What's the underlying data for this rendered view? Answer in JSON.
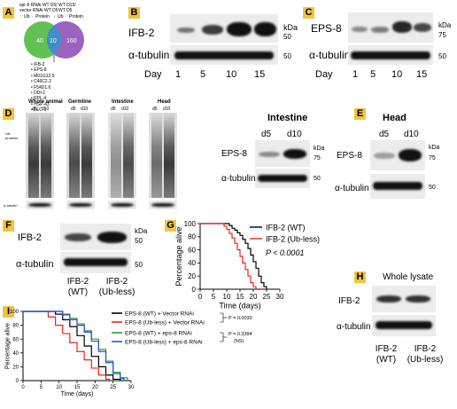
{
  "panels": {
    "A": {
      "label": "A",
      "header_left_1": "spr-6 RNAi WT D5/",
      "header_left_2": "vector RNAi WT D5",
      "header_right_1": "WT D15/",
      "header_right_2": "WT D5",
      "ub_up_left": "Ub",
      "protein_down_left": "Protein",
      "ub_down_right": "Ub",
      "protein_up_right": "Protein",
      "venn_left": "40",
      "venn_mid": "10",
      "venn_right": "160",
      "gene_list": [
        "IFB-2",
        "EPS-8",
        "M01G12.9",
        "C46C2.2",
        "F54D1.6",
        "DDI-1",
        "RPL-4",
        "HSP-43",
        "LEC-1",
        "USP-5"
      ]
    },
    "B": {
      "label": "B",
      "protein": "IFB-2",
      "loading": "α-tubulin",
      "days_label": "Day",
      "days": [
        "1",
        "5",
        "10",
        "15"
      ],
      "kda": "kDa",
      "mw_top": "50",
      "mw_bottom": "50"
    },
    "C": {
      "label": "C",
      "protein": "EPS-8",
      "loading": "α-tubulin",
      "days_label": "Day",
      "days": [
        "1",
        "5",
        "10",
        "15"
      ],
      "kda": "kDa",
      "mw_top": "75",
      "mw_bottom": "50"
    },
    "D": {
      "label": "D",
      "blots": [
        {
          "title": "Whole animal",
          "d1": "d5",
          "d2": "d10"
        },
        {
          "title": "Germline",
          "d1": "d5",
          "d2": "d10"
        },
        {
          "title": "Intestine",
          "d1": "d5",
          "d2": "d10"
        },
        {
          "title": "Head",
          "d1": "d5",
          "d2": "d10"
        }
      ],
      "ub_label": "Ub-proteins",
      "tub_label": "α-tubulin"
    },
    "intestine": {
      "title": "Intestine",
      "d1": "d5",
      "d2": "d10",
      "protein": "EPS-8",
      "loading": "α-tubulin",
      "kda": "kDa",
      "mw_top": "75",
      "mw_bottom": "50"
    },
    "E": {
      "label": "E",
      "title": "Head",
      "d1": "d5",
      "d2": "d10",
      "protein": "EPS-8",
      "loading": "α-tubulin",
      "kda": "kDa",
      "mw_top": "75",
      "mw_bottom": "50"
    },
    "F": {
      "label": "F",
      "protein": "IFB-2",
      "loading": "α-tubulin",
      "kda": "kDa",
      "mw_top": "50",
      "mw_bottom": "50",
      "lane1_a": "IFB-2",
      "lane1_b": "(WT)",
      "lane2_a": "IFB-2",
      "lane2_b": "(Ub-less)"
    },
    "G": {
      "label": "G",
      "pvalue": "P < 0.0001",
      "colors": {
        "wt": "#000000",
        "ubless": "#e8241d"
      }
    },
    "H": {
      "label": "H",
      "title": "Whole lysate",
      "protein": "IFB-2",
      "loading": "α-tubulin",
      "lane1_a": "IFB-2",
      "lane1_b": "(WT)",
      "lane2_a": "IFB-2",
      "lane2_b": "(Ub-less)"
    },
    "I": {
      "label": "I",
      "p1": "P = 0.0030",
      "p2": "P = 0.3394",
      "p2_note": "(NS)",
      "colors": {
        "wt_vec": "#000000",
        "ubless_vec": "#e8241d",
        "wt_eps": "#1aa128",
        "ubless_eps": "#2a4fd8"
      }
    }
  },
  "chart_data": [
    {
      "type": "line",
      "panel": "G",
      "xlabel": "Time (days)",
      "ylabel": "Percentage alive",
      "xlim": [
        0,
        30
      ],
      "ylim": [
        0,
        100
      ],
      "xticks": [
        0,
        5,
        10,
        15,
        20,
        25,
        30
      ],
      "yticks": [
        0,
        20,
        40,
        60,
        80,
        100
      ],
      "legend_position": "top-right",
      "series": [
        {
          "name": "IFB-2 (WT)",
          "x": [
            0,
            9,
            11,
            12,
            13,
            14,
            15,
            16,
            17,
            18,
            19,
            20,
            21,
            22,
            23,
            24,
            25
          ],
          "y": [
            100,
            100,
            97,
            93,
            90,
            86,
            82,
            76,
            70,
            62,
            52,
            42,
            32,
            20,
            10,
            4,
            0
          ]
        },
        {
          "name": "IFB-2 (Ub-less)",
          "x": [
            0,
            8,
            9,
            10,
            11,
            12,
            13,
            14,
            15,
            16,
            17,
            18,
            19,
            20,
            21
          ],
          "y": [
            100,
            100,
            96,
            91,
            85,
            78,
            70,
            60,
            50,
            40,
            30,
            20,
            10,
            4,
            0
          ]
        }
      ]
    },
    {
      "type": "line",
      "panel": "I",
      "xlabel": "Time (days)",
      "ylabel": "Percentage alive",
      "xlim": [
        0,
        30
      ],
      "ylim": [
        0,
        100
      ],
      "xticks": [
        0,
        5,
        10,
        15,
        20,
        25,
        30
      ],
      "yticks": [
        0,
        20,
        40,
        60,
        80,
        100
      ],
      "legend_position": "top-right",
      "series": [
        {
          "name": "EPS-8 (WT) + Vector RNAi",
          "x": [
            0,
            7,
            9,
            11,
            13,
            15,
            17,
            19,
            21,
            23,
            25,
            27
          ],
          "y": [
            100,
            100,
            96,
            88,
            78,
            65,
            50,
            35,
            20,
            8,
            2,
            0
          ]
        },
        {
          "name": "EPS-8 (Ub-less) + Vector RNAi",
          "x": [
            0,
            5,
            7,
            9,
            11,
            13,
            15,
            17,
            19,
            21,
            23,
            24
          ],
          "y": [
            100,
            100,
            92,
            80,
            68,
            55,
            42,
            30,
            18,
            8,
            2,
            0
          ]
        },
        {
          "name": "EPS-8 (WT) + eps-8 RNAi",
          "x": [
            0,
            9,
            11,
            13,
            15,
            17,
            19,
            21,
            23,
            25,
            27,
            29
          ],
          "y": [
            100,
            100,
            96,
            90,
            82,
            72,
            60,
            45,
            28,
            12,
            4,
            0
          ]
        },
        {
          "name": "EPS-8 (Ub-less) + eps-8 RNAi",
          "x": [
            0,
            9,
            11,
            13,
            15,
            17,
            19,
            21,
            23,
            25,
            27,
            28
          ],
          "y": [
            100,
            100,
            95,
            88,
            80,
            70,
            57,
            42,
            26,
            10,
            3,
            0
          ]
        }
      ]
    }
  ]
}
